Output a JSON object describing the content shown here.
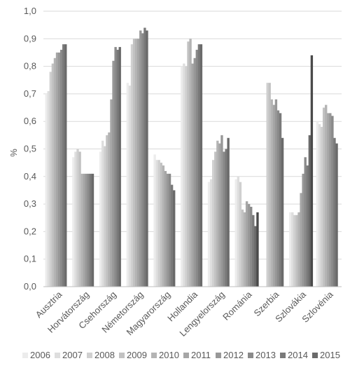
{
  "chart_data": {
    "type": "bar",
    "ylabel": "%",
    "ylim": [
      0,
      1
    ],
    "yticks": [
      "0,0",
      "0,1",
      "0,2",
      "0,3",
      "0,4",
      "0,5",
      "0,6",
      "0,7",
      "0,8",
      "0,9",
      "1,0"
    ],
    "categories": [
      "Ausztria",
      "Horvátország",
      "Csehország",
      "Németország",
      "Magyarország",
      "Hollandia",
      "Lengyelország",
      "Románia",
      "Szerbia",
      "Szlovákia",
      "Szlovénia"
    ],
    "legend_position": "bottom",
    "series": [
      {
        "name": "2006",
        "color": "#ececec",
        "values": [
          0.7,
          0.47,
          0.49,
          0.74,
          0.48,
          0.8,
          0.38,
          0.39,
          null,
          0.27,
          0.6
        ]
      },
      {
        "name": "2007",
        "color": "#dedede",
        "values": [
          0.71,
          0.49,
          0.53,
          0.73,
          0.46,
          0.81,
          0.39,
          0.4,
          null,
          0.27,
          0.59
        ]
      },
      {
        "name": "2008",
        "color": "#d0d0d0",
        "values": [
          0.78,
          0.5,
          0.51,
          0.88,
          0.46,
          0.8,
          0.46,
          0.38,
          0.74,
          0.26,
          0.58
        ]
      },
      {
        "name": "2009",
        "color": "#c2c2c2",
        "values": [
          0.81,
          0.49,
          0.55,
          0.9,
          0.45,
          0.89,
          0.49,
          0.28,
          0.74,
          0.26,
          0.65
        ]
      },
      {
        "name": "2010",
        "color": "#b4b4b4",
        "values": [
          0.83,
          0.41,
          0.56,
          0.9,
          0.44,
          0.9,
          0.53,
          0.27,
          0.68,
          0.27,
          0.66
        ]
      },
      {
        "name": "2011",
        "color": "#a6a6a6",
        "values": [
          0.85,
          0.41,
          0.68,
          0.9,
          0.42,
          0.81,
          0.52,
          0.31,
          0.66,
          0.34,
          0.63
        ]
      },
      {
        "name": "2012",
        "color": "#989898",
        "values": [
          0.85,
          0.41,
          0.82,
          0.93,
          0.41,
          0.83,
          0.55,
          0.3,
          0.68,
          0.41,
          0.63
        ]
      },
      {
        "name": "2013",
        "color": "#8a8a8a",
        "values": [
          0.86,
          0.41,
          0.87,
          0.92,
          0.41,
          0.86,
          0.49,
          0.29,
          0.64,
          0.47,
          0.62
        ]
      },
      {
        "name": "2014",
        "color": "#7a7a7a",
        "values": [
          0.88,
          0.41,
          0.86,
          0.94,
          0.37,
          0.88,
          0.5,
          0.26,
          0.63,
          0.44,
          0.54
        ]
      },
      {
        "name": "2015",
        "color": "#6a6a6a",
        "values": [
          0.88,
          0.41,
          0.87,
          0.93,
          0.35,
          0.88,
          0.54,
          0.22,
          0.54,
          0.55,
          0.52
        ]
      },
      {
        "name": "",
        "color": "#4a4a4a",
        "values": [
          null,
          null,
          null,
          null,
          null,
          null,
          null,
          0.27,
          null,
          0.84,
          null
        ]
      }
    ]
  }
}
